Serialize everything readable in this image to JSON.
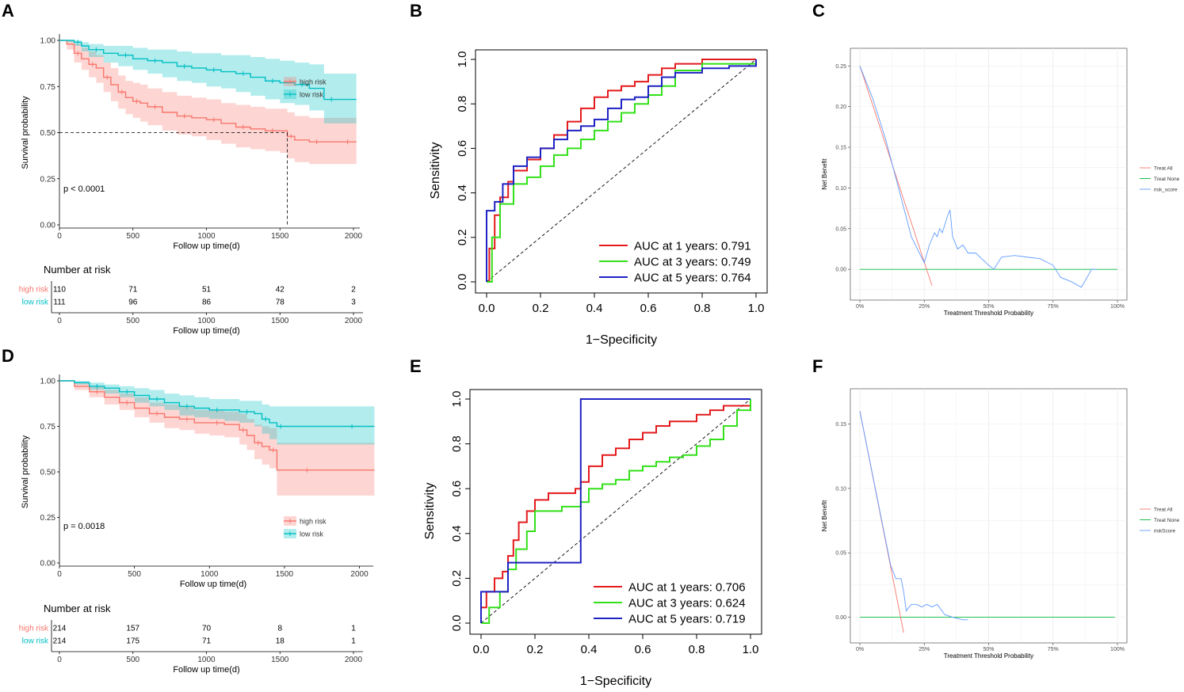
{
  "panels": {
    "A": "A",
    "B": "B",
    "C": "C",
    "D": "D",
    "E": "E",
    "F": "F"
  },
  "chart_data": [
    {
      "id": "A",
      "type": "line",
      "subtype": "kaplan-meier",
      "xlabel": "Follow up time(d)",
      "ylabel": "Survival probability",
      "xlim": [
        0,
        2000
      ],
      "ylim": [
        0,
        1
      ],
      "x_ticks": [
        "0",
        "500",
        "1000",
        "1500",
        "2000"
      ],
      "y_ticks": [
        "0.00",
        "0.25",
        "0.50",
        "0.75",
        "1.00"
      ],
      "annotation": "p < 0.0001",
      "median_line": {
        "y": 0.5,
        "x": 1550
      },
      "legend": [
        "high risk",
        "low risk"
      ],
      "series": [
        {
          "name": "high risk",
          "color": "#F8766D",
          "x": [
            0,
            50,
            100,
            150,
            200,
            250,
            300,
            350,
            400,
            450,
            500,
            550,
            600,
            700,
            800,
            900,
            1000,
            1100,
            1200,
            1300,
            1400,
            1500,
            1550,
            1600,
            1700,
            1800,
            1900,
            2020
          ],
          "y": [
            1.0,
            0.98,
            0.93,
            0.9,
            0.87,
            0.85,
            0.8,
            0.76,
            0.72,
            0.69,
            0.67,
            0.66,
            0.64,
            0.61,
            0.59,
            0.58,
            0.57,
            0.55,
            0.53,
            0.52,
            0.51,
            0.51,
            0.48,
            0.46,
            0.45,
            0.45,
            0.45,
            0.45
          ],
          "lower": [
            1.0,
            0.95,
            0.88,
            0.84,
            0.8,
            0.77,
            0.72,
            0.67,
            0.63,
            0.6,
            0.58,
            0.56,
            0.54,
            0.51,
            0.49,
            0.48,
            0.46,
            0.44,
            0.42,
            0.41,
            0.4,
            0.39,
            0.36,
            0.34,
            0.33,
            0.33,
            0.33,
            0.33
          ],
          "upper": [
            1.0,
            1.0,
            0.98,
            0.96,
            0.94,
            0.92,
            0.88,
            0.85,
            0.81,
            0.78,
            0.77,
            0.76,
            0.74,
            0.72,
            0.7,
            0.69,
            0.68,
            0.66,
            0.65,
            0.64,
            0.63,
            0.63,
            0.61,
            0.59,
            0.58,
            0.58,
            0.58,
            0.58
          ]
        },
        {
          "name": "low risk",
          "color": "#00BFC4",
          "x": [
            0,
            50,
            100,
            150,
            200,
            300,
            400,
            500,
            600,
            700,
            800,
            900,
            1000,
            1100,
            1200,
            1300,
            1400,
            1500,
            1600,
            1700,
            1800,
            1900,
            2020
          ],
          "y": [
            1.0,
            1.0,
            0.99,
            0.97,
            0.95,
            0.93,
            0.92,
            0.9,
            0.89,
            0.88,
            0.86,
            0.85,
            0.84,
            0.83,
            0.82,
            0.8,
            0.78,
            0.77,
            0.76,
            0.74,
            0.68,
            0.68,
            0.68
          ],
          "lower": [
            1.0,
            0.99,
            0.97,
            0.94,
            0.91,
            0.88,
            0.86,
            0.84,
            0.82,
            0.8,
            0.78,
            0.77,
            0.75,
            0.74,
            0.72,
            0.7,
            0.68,
            0.66,
            0.65,
            0.62,
            0.55,
            0.55,
            0.55
          ],
          "upper": [
            1.0,
            1.0,
            1.0,
            0.99,
            0.98,
            0.97,
            0.97,
            0.96,
            0.95,
            0.95,
            0.94,
            0.93,
            0.93,
            0.92,
            0.92,
            0.91,
            0.9,
            0.89,
            0.88,
            0.87,
            0.82,
            0.82,
            0.82
          ]
        }
      ]
    },
    {
      "id": "B",
      "type": "line",
      "subtype": "roc",
      "xlabel": "1−Specificity",
      "ylabel": "Sensitivity",
      "xlim": [
        0,
        1
      ],
      "ylim": [
        0,
        1
      ],
      "x_ticks": [
        "0.0",
        "0.2",
        "0.4",
        "0.6",
        "0.8",
        "1.0"
      ],
      "y_ticks": [
        "0.0",
        "0.2",
        "0.4",
        "0.6",
        "0.8",
        "1.0"
      ],
      "series": [
        {
          "name": "AUC at 1 years: 0.791",
          "color": "#E41A1C",
          "x": [
            0,
            0.01,
            0.03,
            0.05,
            0.08,
            0.1,
            0.15,
            0.2,
            0.25,
            0.3,
            0.35,
            0.4,
            0.45,
            0.5,
            0.55,
            0.6,
            0.65,
            0.7,
            0.8,
            0.9,
            1.0
          ],
          "y": [
            0,
            0.15,
            0.3,
            0.38,
            0.45,
            0.5,
            0.55,
            0.6,
            0.66,
            0.72,
            0.78,
            0.83,
            0.86,
            0.88,
            0.9,
            0.93,
            0.96,
            0.98,
            1.0,
            1.0,
            1.0
          ]
        },
        {
          "name": "AUC at 3 years: 0.749",
          "color": "#33E01A",
          "x": [
            0,
            0.02,
            0.05,
            0.1,
            0.15,
            0.2,
            0.25,
            0.3,
            0.35,
            0.4,
            0.45,
            0.5,
            0.55,
            0.6,
            0.65,
            0.7,
            0.8,
            0.9,
            1.0
          ],
          "y": [
            0,
            0.2,
            0.35,
            0.44,
            0.47,
            0.52,
            0.57,
            0.6,
            0.64,
            0.68,
            0.72,
            0.76,
            0.8,
            0.84,
            0.88,
            0.95,
            0.98,
            0.98,
            1.0
          ]
        },
        {
          "name": "AUC at 5 years: 0.764",
          "color": "#1E22C2",
          "x": [
            0,
            0.0,
            0.03,
            0.06,
            0.1,
            0.15,
            0.2,
            0.25,
            0.3,
            0.35,
            0.4,
            0.45,
            0.5,
            0.55,
            0.6,
            0.65,
            0.7,
            0.8,
            0.9,
            1.0
          ],
          "y": [
            0,
            0.32,
            0.36,
            0.44,
            0.52,
            0.56,
            0.6,
            0.64,
            0.68,
            0.7,
            0.73,
            0.78,
            0.82,
            0.83,
            0.88,
            0.92,
            0.94,
            0.96,
            0.97,
            1.0
          ]
        }
      ]
    },
    {
      "id": "C",
      "type": "line",
      "subtype": "decision-curve",
      "xlabel": "Treatment Threshold Probability",
      "ylabel": "Net Benefit",
      "xlim": [
        0,
        1
      ],
      "ylim": [
        -0.03,
        0.26
      ],
      "x_ticks": [
        "0%",
        "25%",
        "50%",
        "75%",
        "100%"
      ],
      "y_ticks": [
        "0.00",
        "0.05",
        "0.10",
        "0.15",
        "0.20",
        "0.25"
      ],
      "series": [
        {
          "name": "Treat All",
          "color": "#F8766D",
          "x": [
            0,
            0.28
          ],
          "y": [
            0.25,
            -0.02
          ]
        },
        {
          "name": "Treat None",
          "color": "#00BA38",
          "x": [
            0,
            1.0
          ],
          "y": [
            0,
            0
          ]
        },
        {
          "name": "risk_score",
          "color": "#619CFF",
          "x": [
            0,
            0.05,
            0.1,
            0.15,
            0.2,
            0.25,
            0.27,
            0.29,
            0.3,
            0.31,
            0.32,
            0.33,
            0.34,
            0.35,
            0.36,
            0.38,
            0.4,
            0.42,
            0.45,
            0.5,
            0.52,
            0.55,
            0.6,
            0.65,
            0.7,
            0.75,
            0.78,
            0.82,
            0.86,
            0.9,
            0.92
          ],
          "y": [
            0.25,
            0.21,
            0.16,
            0.1,
            0.04,
            0.008,
            0.03,
            0.045,
            0.04,
            0.05,
            0.045,
            0.055,
            0.065,
            0.073,
            0.04,
            0.025,
            0.03,
            0.02,
            0.02,
            0.005,
            0.0,
            0.015,
            0.017,
            0.015,
            0.013,
            0.005,
            -0.01,
            -0.015,
            -0.022,
            0.0,
            0.0
          ]
        }
      ]
    },
    {
      "id": "D",
      "type": "line",
      "subtype": "kaplan-meier",
      "xlabel": "Follow up time(d)",
      "ylabel": "Survival probability",
      "xlim": [
        0,
        2050
      ],
      "ylim": [
        0,
        1
      ],
      "x_ticks": [
        "0",
        "500",
        "1000",
        "1500",
        "2000"
      ],
      "y_ticks": [
        "0.00",
        "0.25",
        "0.50",
        "0.75",
        "1.00"
      ],
      "annotation": "p = 0.0018",
      "legend": [
        "high risk",
        "low risk"
      ],
      "series": [
        {
          "name": "high risk",
          "color": "#F8766D",
          "x": [
            0,
            100,
            200,
            300,
            400,
            500,
            600,
            700,
            800,
            900,
            1000,
            1100,
            1200,
            1250,
            1300,
            1350,
            1400,
            1450,
            1500,
            1800,
            2100
          ],
          "y": [
            1.0,
            0.97,
            0.94,
            0.91,
            0.88,
            0.85,
            0.82,
            0.8,
            0.79,
            0.77,
            0.77,
            0.76,
            0.73,
            0.7,
            0.66,
            0.64,
            0.62,
            0.51,
            0.51,
            0.51,
            0.51
          ],
          "lower": [
            1.0,
            0.95,
            0.91,
            0.87,
            0.84,
            0.8,
            0.77,
            0.74,
            0.73,
            0.71,
            0.7,
            0.69,
            0.65,
            0.62,
            0.57,
            0.54,
            0.52,
            0.37,
            0.37,
            0.37,
            0.37
          ],
          "upper": [
            1.0,
            0.99,
            0.97,
            0.95,
            0.93,
            0.91,
            0.88,
            0.87,
            0.86,
            0.84,
            0.84,
            0.83,
            0.82,
            0.79,
            0.76,
            0.75,
            0.74,
            0.66,
            0.66,
            0.66,
            0.66
          ]
        },
        {
          "name": "low risk",
          "color": "#00BFC4",
          "x": [
            0,
            100,
            200,
            300,
            400,
            500,
            600,
            700,
            800,
            900,
            1000,
            1100,
            1200,
            1300,
            1350,
            1400,
            1450,
            1500,
            1800,
            2100
          ],
          "y": [
            1.0,
            0.99,
            0.97,
            0.96,
            0.94,
            0.92,
            0.9,
            0.88,
            0.86,
            0.85,
            0.84,
            0.84,
            0.83,
            0.82,
            0.79,
            0.77,
            0.75,
            0.75,
            0.75,
            0.75
          ],
          "lower": [
            1.0,
            0.98,
            0.95,
            0.93,
            0.91,
            0.88,
            0.86,
            0.84,
            0.81,
            0.8,
            0.79,
            0.78,
            0.77,
            0.75,
            0.71,
            0.68,
            0.65,
            0.65,
            0.65,
            0.65
          ],
          "upper": [
            1.0,
            1.0,
            0.99,
            0.98,
            0.97,
            0.96,
            0.95,
            0.93,
            0.92,
            0.91,
            0.9,
            0.9,
            0.89,
            0.89,
            0.87,
            0.86,
            0.86,
            0.86,
            0.86,
            0.86
          ]
        }
      ]
    },
    {
      "id": "E",
      "type": "line",
      "subtype": "roc",
      "xlabel": "1−Specificity",
      "ylabel": "Sensitivity",
      "xlim": [
        0,
        1
      ],
      "ylim": [
        0,
        1
      ],
      "x_ticks": [
        "0.0",
        "0.2",
        "0.4",
        "0.6",
        "0.8",
        "1.0"
      ],
      "y_ticks": [
        "0.0",
        "0.2",
        "0.4",
        "0.6",
        "0.8",
        "1.0"
      ],
      "series": [
        {
          "name": "AUC at 1 years: 0.706",
          "color": "#E41A1C",
          "x": [
            0,
            0.0,
            0.02,
            0.05,
            0.08,
            0.1,
            0.12,
            0.14,
            0.17,
            0.2,
            0.25,
            0.3,
            0.35,
            0.37,
            0.4,
            0.45,
            0.5,
            0.55,
            0.6,
            0.65,
            0.7,
            0.75,
            0.8,
            0.85,
            0.9,
            0.95,
            1.0
          ],
          "y": [
            0,
            0.07,
            0.14,
            0.2,
            0.23,
            0.3,
            0.37,
            0.45,
            0.5,
            0.55,
            0.58,
            0.58,
            0.6,
            0.63,
            0.7,
            0.75,
            0.78,
            0.82,
            0.85,
            0.88,
            0.9,
            0.9,
            0.93,
            0.95,
            0.97,
            0.97,
            1.0
          ]
        },
        {
          "name": "AUC at 3 years: 0.624",
          "color": "#33E01A",
          "x": [
            0,
            0.03,
            0.07,
            0.1,
            0.13,
            0.17,
            0.2,
            0.25,
            0.3,
            0.35,
            0.37,
            0.4,
            0.45,
            0.5,
            0.55,
            0.6,
            0.65,
            0.7,
            0.75,
            0.8,
            0.85,
            0.9,
            0.95,
            1.0
          ],
          "y": [
            0,
            0.07,
            0.14,
            0.24,
            0.33,
            0.41,
            0.5,
            0.5,
            0.52,
            0.52,
            0.54,
            0.6,
            0.62,
            0.64,
            0.68,
            0.7,
            0.72,
            0.74,
            0.75,
            0.79,
            0.82,
            0.88,
            0.95,
            1.0
          ]
        },
        {
          "name": "AUC at 5 years: 0.719",
          "color": "#1E22C2",
          "x": [
            0,
            0.0,
            0.1,
            0.1,
            0.37,
            0.37,
            1.0
          ],
          "y": [
            0,
            0.14,
            0.14,
            0.27,
            0.27,
            1.0,
            1.0
          ]
        }
      ]
    },
    {
      "id": "F",
      "type": "line",
      "subtype": "decision-curve",
      "xlabel": "Treatment Threshold Probability",
      "ylabel": "Net Benefit",
      "xlim": [
        0,
        1
      ],
      "ylim": [
        -0.015,
        0.17
      ],
      "x_ticks": [
        "0%",
        "25%",
        "50%",
        "75%",
        "100%"
      ],
      "y_ticks": [
        "0.00",
        "0.05",
        "0.10",
        "0.15"
      ],
      "series": [
        {
          "name": "Treat All",
          "color": "#F8766D",
          "x": [
            0,
            0.17
          ],
          "y": [
            0.16,
            -0.012
          ]
        },
        {
          "name": "Treat None",
          "color": "#00BA38",
          "x": [
            0,
            0.99
          ],
          "y": [
            0,
            0
          ]
        },
        {
          "name": "riskScore",
          "color": "#619CFF",
          "x": [
            0,
            0.04,
            0.08,
            0.12,
            0.14,
            0.16,
            0.17,
            0.18,
            0.2,
            0.22,
            0.24,
            0.26,
            0.28,
            0.3,
            0.33,
            0.36,
            0.4,
            0.42
          ],
          "y": [
            0.16,
            0.12,
            0.08,
            0.04,
            0.03,
            0.03,
            0.02,
            0.005,
            0.01,
            0.01,
            0.008,
            0.01,
            0.008,
            0.01,
            0.002,
            0.0,
            -0.002,
            -0.002
          ]
        }
      ]
    }
  ],
  "risk_tables": [
    {
      "panel": "A",
      "title": "Number at risk",
      "xlabel": "Follow up time(d)",
      "x_ticks": [
        "0",
        "500",
        "1000",
        "1500",
        "2000"
      ],
      "rows": [
        {
          "label": "high risk",
          "color": "#F8766D",
          "values": [
            "110",
            "71",
            "51",
            "42",
            "2"
          ]
        },
        {
          "label": "low risk",
          "color": "#00BFC4",
          "values": [
            "111",
            "96",
            "86",
            "78",
            "3"
          ]
        }
      ]
    },
    {
      "panel": "D",
      "title": "Number at risk",
      "xlabel": "Follow up time(d)",
      "x_ticks": [
        "0",
        "500",
        "1000",
        "1500",
        "2000"
      ],
      "rows": [
        {
          "label": "high risk",
          "color": "#F8766D",
          "values": [
            "214",
            "157",
            "70",
            "8",
            "1"
          ]
        },
        {
          "label": "low risk",
          "color": "#00BFC4",
          "values": [
            "214",
            "175",
            "71",
            "18",
            "1"
          ]
        }
      ]
    }
  ]
}
